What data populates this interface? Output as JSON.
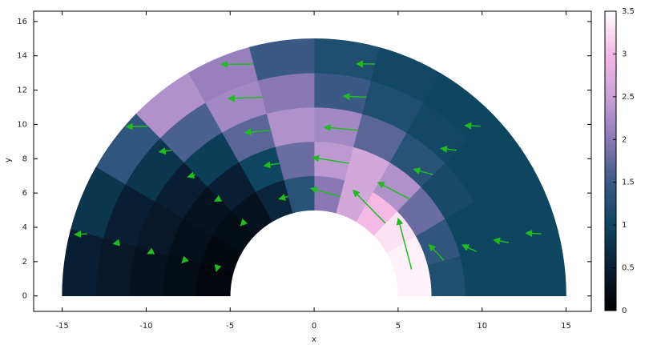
{
  "chart_data": {
    "type": "polar_field",
    "xlabel": "x",
    "ylabel": "y",
    "xlim": [
      -16.7,
      16.5
    ],
    "ylim": [
      -0.9,
      16.6
    ],
    "xticks": [
      -15,
      -10,
      -5,
      0,
      5,
      10,
      15
    ],
    "yticks": [
      0,
      2,
      4,
      6,
      8,
      10,
      12,
      14,
      16
    ],
    "field": {
      "r_edges": [
        5,
        7,
        9,
        11,
        13,
        15
      ],
      "theta_edges": [
        0,
        15,
        30,
        45,
        60,
        75,
        90,
        105,
        120,
        135,
        150,
        165,
        180
      ],
      "speed": [
        [
          3.4,
          3.4,
          3.3,
          3.0,
          2.6,
          2.0,
          1.3,
          0.6,
          0.3,
          0.2,
          0.15,
          0.1
        ],
        [
          1.2,
          1.4,
          1.8,
          2.3,
          2.6,
          2.4,
          1.8,
          1.0,
          0.5,
          0.3,
          0.25,
          0.2
        ],
        [
          1.0,
          1.0,
          1.1,
          1.3,
          1.7,
          2.2,
          2.3,
          1.7,
          0.9,
          0.5,
          0.4,
          0.3
        ],
        [
          1.0,
          1.0,
          1.0,
          1.05,
          1.2,
          1.5,
          2.0,
          2.2,
          1.6,
          0.8,
          0.5,
          0.4
        ],
        [
          1.0,
          1.0,
          1.0,
          1.0,
          1.05,
          1.2,
          1.5,
          2.1,
          2.3,
          1.4,
          0.8,
          0.5
        ]
      ]
    },
    "arrows": {
      "color": "#22bb22",
      "x": [
        5.8,
        4.24,
        1.55,
        -1.55,
        -4.24,
        -5.8,
        7.73,
        5.66,
        2.07,
        -2.07,
        -5.66,
        -7.73,
        9.66,
        7.07,
        2.59,
        -2.59,
        -7.07,
        -9.66,
        11.59,
        8.49,
        3.11,
        -3.11,
        -8.49,
        -11.59,
        13.52,
        9.9,
        3.62,
        -3.62,
        -9.9,
        -13.52
      ],
      "y": [
        1.55,
        4.24,
        5.8,
        5.8,
        4.24,
        1.55,
        2.07,
        5.66,
        7.73,
        7.73,
        5.66,
        2.07,
        2.59,
        7.07,
        9.66,
        9.66,
        7.07,
        2.59,
        3.11,
        8.49,
        11.59,
        11.59,
        8.49,
        3.11,
        3.62,
        9.9,
        13.52,
        13.52,
        9.9,
        3.62
      ],
      "u": [
        -0.88,
        -2.12,
        -1.93,
        -0.58,
        -0.14,
        -0.03,
        -0.97,
        -2.05,
        -2.38,
        -0.99,
        -0.27,
        -0.14,
        -0.91,
        -1.25,
        -2.19,
        -1.69,
        -0.48,
        -0.27,
        -0.98,
        -1.04,
        -1.5,
        -2.2,
        -0.79,
        -0.39,
        -1.0,
        -1.0,
        -1.2,
        -2.1,
        -1.4,
        -0.8
      ],
      "v": [
        3.28,
        2.12,
        0.52,
        -0.16,
        -0.14,
        -0.1,
        1.01,
        1.06,
        0.38,
        -0.16,
        -0.14,
        -0.14,
        0.42,
        0.35,
        0.2,
        -0.15,
        -0.14,
        -0.13,
        0.17,
        0.12,
        0.06,
        -0.09,
        -0.09,
        -0.07,
        0.05,
        0.04,
        0.01,
        -0.02,
        -0.04,
        -0.04
      ]
    },
    "colorbar": {
      "lim": [
        0,
        3.5
      ],
      "ticks": [
        0,
        0.5,
        1,
        1.5,
        2,
        2.5,
        3,
        3.5
      ],
      "colormap": [
        [
          0,
          "#000000"
        ],
        [
          0.5,
          "#0a1e33"
        ],
        [
          1,
          "#0e4660"
        ],
        [
          1.5,
          "#3a5a85"
        ],
        [
          2,
          "#8a78b5"
        ],
        [
          2.5,
          "#c9a2d8"
        ],
        [
          3,
          "#f4b9e4"
        ],
        [
          3.5,
          "#ffffff"
        ]
      ]
    }
  }
}
